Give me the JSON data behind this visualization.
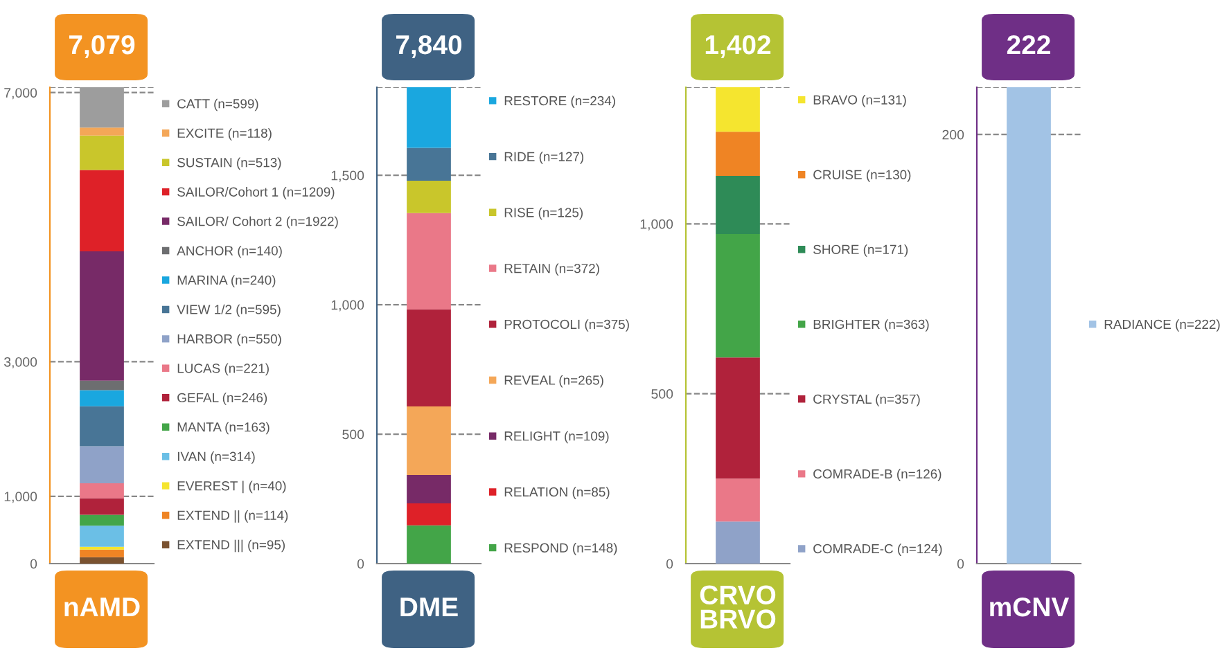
{
  "chart_data": [
    {
      "type": "bar",
      "stacked": true,
      "title": "7,079",
      "xlabel": "nAMD",
      "categories": [
        null
      ],
      "legend": "right",
      "grid": "y",
      "tick_labels": "y",
      "ylim": [
        0,
        7079
      ],
      "yticks": [
        0,
        {
          "value": 1000,
          "label": "1,000"
        },
        {
          "value": 3000,
          "label": "3,000"
        },
        {
          "value": 7000,
          "label": "7,000"
        }
      ],
      "series": [
        {
          "name": "EXTEND ||| (n=95)",
          "color": "#7a5230",
          "values": [
            95
          ]
        },
        {
          "name": "EXTEND || (n=114)",
          "color": "#ef8424",
          "values": [
            114
          ]
        },
        {
          "name": "EVEREST | (n=40)",
          "color": "#f5e52f",
          "values": [
            40
          ]
        },
        {
          "name": "IVAN (n=314)",
          "color": "#6bbfe6",
          "values": [
            314
          ]
        },
        {
          "name": "MANTA (n=163)",
          "color": "#43a548",
          "values": [
            163
          ]
        },
        {
          "name": "GEFAL (n=246)",
          "color": "#b0223b",
          "values": [
            246
          ]
        },
        {
          "name": "LUCAS (n=221)",
          "color": "#ea7888",
          "values": [
            221
          ]
        },
        {
          "name": "HARBOR (n=550)",
          "color": "#8fa2c8",
          "values": [
            550
          ]
        },
        {
          "name": "VIEW 1/2 (n=595)",
          "color": "#487596",
          "values": [
            595
          ]
        },
        {
          "name": "MARINA (n=240)",
          "color": "#1aa7df",
          "values": [
            240
          ]
        },
        {
          "name": "ANCHOR (n=140)",
          "color": "#6d6e70",
          "values": [
            140
          ]
        },
        {
          "name": "SAILOR/ Cohort 2 (n=1922)",
          "color": "#772a67",
          "values": [
            1922
          ]
        },
        {
          "name": "SAILOR/Cohort 1 (n=1209)",
          "color": "#de2128",
          "values": [
            1209
          ]
        },
        {
          "name": "SUSTAIN (n=513)",
          "color": "#c9c62b",
          "values": [
            513
          ]
        },
        {
          "name": "EXCITE (n=118)",
          "color": "#f4a758",
          "values": [
            118
          ]
        },
        {
          "name": "CATT (n=599)",
          "color": "#9d9d9d",
          "values": [
            599
          ]
        }
      ]
    },
    {
      "type": "bar",
      "stacked": true,
      "title": "7,840",
      "xlabel": "DME",
      "categories": [
        null
      ],
      "legend": "right",
      "grid": "y",
      "tick_labels": "y",
      "ylim": [
        0,
        1840
      ],
      "yticks": [
        0,
        500,
        {
          "value": 1000,
          "label": "1,000"
        },
        {
          "value": 1500,
          "label": "1,500"
        }
      ],
      "series": [
        {
          "name": "RESPOND (n=148)",
          "color": "#43a548",
          "values": [
            148
          ]
        },
        {
          "name": "RELATION (n=85)",
          "color": "#de2128",
          "values": [
            85
          ]
        },
        {
          "name": "RELIGHT (n=109)",
          "color": "#772a67",
          "values": [
            109
          ]
        },
        {
          "name": "REVEAL (n=265)",
          "color": "#f4a758",
          "values": [
            265
          ]
        },
        {
          "name": "PROTOCOLI (n=375)",
          "color": "#b0223b",
          "values": [
            375
          ]
        },
        {
          "name": "RETAIN (n=372)",
          "color": "#ea7888",
          "values": [
            372
          ]
        },
        {
          "name": "RISE (n=125)",
          "color": "#c9c62b",
          "values": [
            125
          ]
        },
        {
          "name": "RIDE (n=127)",
          "color": "#487596",
          "values": [
            127
          ]
        },
        {
          "name": "RESTORE (n=234)",
          "color": "#1aa7df",
          "values": [
            234
          ]
        }
      ]
    },
    {
      "type": "bar",
      "stacked": true,
      "title": "1,402",
      "xlabel": "CRVO\nBRVO",
      "categories": [
        null
      ],
      "legend": "right",
      "grid": "y",
      "tick_labels": "y",
      "ylim": [
        0,
        1402
      ],
      "yticks": [
        0,
        500,
        {
          "value": 1000,
          "label": "1,000"
        }
      ],
      "series": [
        {
          "name": "COMRADE-C (n=124)",
          "color": "#8fa2c8",
          "values": [
            124
          ]
        },
        {
          "name": "COMRADE-B (n=126)",
          "color": "#ea7888",
          "values": [
            126
          ]
        },
        {
          "name": "CRYSTAL (n=357)",
          "color": "#b0223b",
          "values": [
            357
          ]
        },
        {
          "name": "BRIGHTER (n=363)",
          "color": "#43a548",
          "values": [
            363
          ]
        },
        {
          "name": "SHORE (n=171)",
          "color": "#2e8b57",
          "values": [
            171
          ]
        },
        {
          "name": "CRUISE (n=130)",
          "color": "#ef8424",
          "values": [
            130
          ]
        },
        {
          "name": "BRAVO (n=131)",
          "color": "#f5e52f",
          "values": [
            131
          ]
        }
      ]
    },
    {
      "type": "bar",
      "stacked": true,
      "title": "222",
      "xlabel": "mCNV",
      "categories": [
        null
      ],
      "legend": "right",
      "grid": "y",
      "tick_labels": "y",
      "ylim": [
        0,
        222
      ],
      "yticks": [
        0,
        200
      ],
      "series": [
        {
          "name": "RADIANCE (n=222)",
          "color": "#a2c3e5",
          "values": [
            222
          ]
        }
      ]
    }
  ]
}
